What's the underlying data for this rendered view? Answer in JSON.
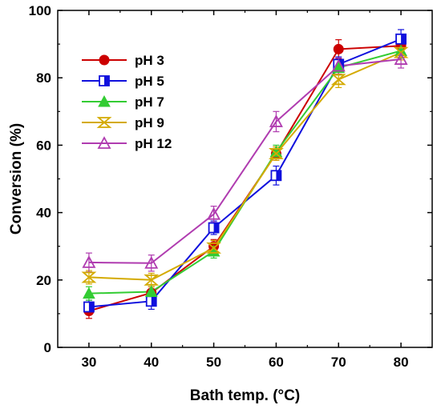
{
  "chart_data": {
    "type": "line",
    "title": "",
    "xlabel": "Bath temp. (°C)",
    "ylabel": "Conversion (%)",
    "xlim": [
      25,
      85
    ],
    "ylim": [
      0,
      100
    ],
    "xticks": [
      30,
      40,
      50,
      60,
      70,
      80
    ],
    "yticks": [
      0,
      20,
      40,
      60,
      80,
      100
    ],
    "grid": false,
    "legend_position": "top-left",
    "x": [
      30,
      40,
      50,
      60,
      70,
      80
    ],
    "series": [
      {
        "name": "pH 3",
        "color": "#cc0000",
        "marker": "filled-circle",
        "values": [
          10.8,
          16.2,
          30.0,
          57.5,
          88.5,
          89.5
        ],
        "errors": [
          2.2,
          1.8,
          2.0,
          2.0,
          2.8,
          2.2
        ]
      },
      {
        "name": "pH 5",
        "color": "#1010dd",
        "marker": "half-filled-square",
        "values": [
          12.0,
          13.7,
          35.5,
          51.0,
          84.0,
          91.5
        ],
        "errors": [
          2.0,
          2.4,
          2.0,
          2.8,
          2.2,
          2.8
        ]
      },
      {
        "name": "pH 7",
        "color": "#33cc33",
        "marker": "filled-triangle",
        "values": [
          16.0,
          16.5,
          28.5,
          58.0,
          83.0,
          88.0
        ],
        "errors": [
          2.0,
          2.0,
          2.0,
          2.0,
          2.2,
          2.2
        ]
      },
      {
        "name": "pH 9",
        "color": "#d4aa00",
        "marker": "open-hourglass",
        "values": [
          20.8,
          20.0,
          29.5,
          57.5,
          79.5,
          87.5
        ],
        "errors": [
          2.0,
          2.0,
          2.2,
          2.0,
          2.4,
          2.2
        ]
      },
      {
        "name": "pH 12",
        "color": "#b03cb0",
        "marker": "open-triangle",
        "values": [
          25.2,
          25.0,
          39.5,
          67.0,
          83.5,
          85.5
        ],
        "errors": [
          2.8,
          2.4,
          2.4,
          3.0,
          2.4,
          2.6
        ]
      }
    ]
  }
}
